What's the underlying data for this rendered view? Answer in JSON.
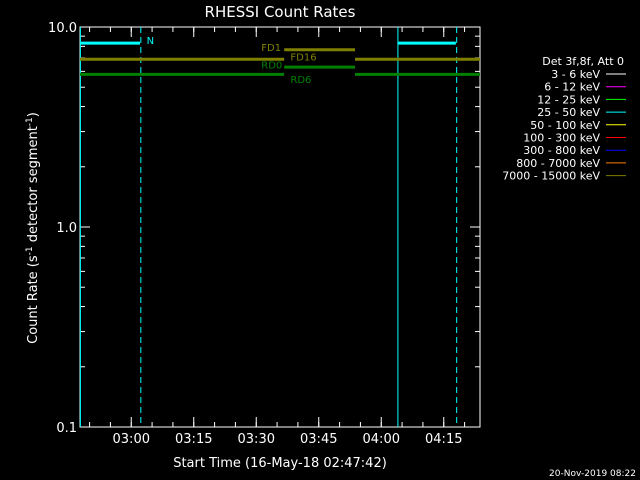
{
  "chart_data": {
    "type": "line",
    "title": "RHESSI Count Rates",
    "xlabel": "Start Time (16-May-18 02:47:42)",
    "ylabel_main": "Count Rate (s",
    "ylabel_sup1": "-1",
    "ylabel_mid": " detector segment",
    "ylabel_sup2": "-1",
    "ylabel_end": ")",
    "yscale": "log",
    "ylim": [
      0.1,
      10.0
    ],
    "xlim_minutes": [
      0,
      96
    ],
    "x_ticks": [
      {
        "m": 12.3,
        "label": "03:00"
      },
      {
        "m": 27.3,
        "label": "03:15"
      },
      {
        "m": 42.3,
        "label": "03:30"
      },
      {
        "m": 57.3,
        "label": "03:45"
      },
      {
        "m": 72.3,
        "label": "04:00"
      },
      {
        "m": 87.3,
        "label": "04:15"
      }
    ],
    "y_ticks": [
      {
        "v": 0.1,
        "label": "0.1"
      },
      {
        "v": 1.0,
        "label": "1.0"
      },
      {
        "v": 10.0,
        "label": "10.0"
      }
    ],
    "legend": {
      "title": "Det 3f,8f, Att 0",
      "entries": [
        {
          "label": "3 - 6 keV",
          "color": "#ffffff"
        },
        {
          "label": "6 - 12 keV",
          "color": "#ff00ff"
        },
        {
          "label": "12 - 25 keV",
          "color": "#00ff00"
        },
        {
          "label": "25 - 50 keV",
          "color": "#00ffff"
        },
        {
          "label": "50 - 100 keV",
          "color": "#ffff00"
        },
        {
          "label": "100 - 300 keV",
          "color": "#ff0000"
        },
        {
          "label": "300 - 800 keV",
          "color": "#0000ff"
        },
        {
          "label": "800 - 7000 keV",
          "color": "#ff8000"
        },
        {
          "label": "7000 - 15000 keV",
          "color": "#808000"
        }
      ]
    },
    "series": [
      {
        "name": "N",
        "color": "#00ffff",
        "segments": [
          [
            0,
            14.4,
            8.3
          ],
          [
            76.3,
            90.2,
            8.3
          ]
        ]
      },
      {
        "name": "FD1",
        "color": "#808000",
        "segments": [
          [
            0,
            49.0,
            6.9
          ],
          [
            66.0,
            96,
            6.9
          ]
        ]
      },
      {
        "name": "FD16",
        "color": "#808000",
        "segments": [
          [
            49.0,
            66.0,
            7.7
          ]
        ]
      },
      {
        "name": "RD0",
        "color": "#008000",
        "segments": [
          [
            0,
            49.0,
            5.8
          ],
          [
            66.0,
            96,
            5.8
          ]
        ]
      },
      {
        "name": "RD6",
        "color": "#008000",
        "segments": [
          [
            49.0,
            66.0,
            6.3
          ]
        ]
      }
    ],
    "series_labels": [
      {
        "text": "N",
        "color": "#00ffff",
        "m": 16.0,
        "v": 8.6
      },
      {
        "text": "FD1",
        "color": "#808000",
        "m": 43.5,
        "v": 7.95
      },
      {
        "text": "FD16",
        "color": "#808000",
        "m": 50.5,
        "v": 7.1
      },
      {
        "text": "RD0",
        "color": "#008000",
        "m": 43.5,
        "v": 6.5
      },
      {
        "text": "RD6",
        "color": "#008000",
        "m": 50.5,
        "v": 5.5
      }
    ],
    "vlines": [
      {
        "m": 0.1,
        "color": "#00ffff",
        "dash": false
      },
      {
        "m": 14.6,
        "color": "#00ffff",
        "dash": true
      },
      {
        "m": 76.3,
        "color": "#00ffff",
        "dash": false
      },
      {
        "m": 90.4,
        "color": "#00ffff",
        "dash": true
      }
    ]
  },
  "footer": {
    "timestamp": "20-Nov-2019 08:22"
  }
}
